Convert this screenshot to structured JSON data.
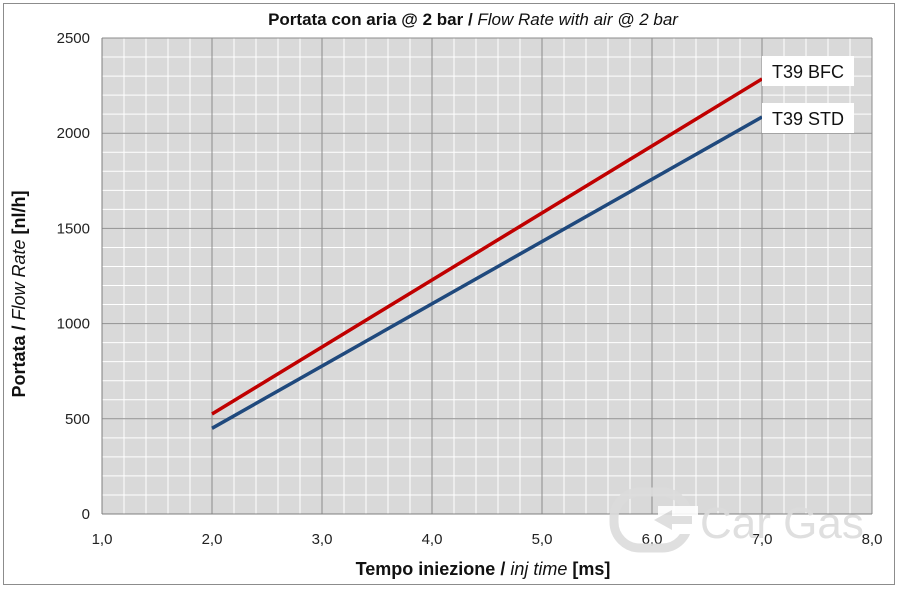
{
  "chart_data": {
    "type": "line",
    "title": "Portata con aria @ 2 bar",
    "title_separator": " / ",
    "title_italic": "Flow Rate with air @ 2 bar",
    "xlabel": "Tempo iniezione",
    "xlabel_separator": " / ",
    "xlabel_italic": "inj time",
    "xlabel_unit": " [ms]",
    "ylabel": "Portata",
    "ylabel_separator": " / ",
    "ylabel_italic": "Flow Rate",
    "ylabel_unit": " [nl/h]",
    "xlim": [
      1.0,
      8.0
    ],
    "ylim": [
      0,
      2500
    ],
    "x_ticks": [
      "1,0",
      "2,0",
      "3,0",
      "4,0",
      "5,0",
      "6,0",
      "7,0",
      "8,0"
    ],
    "y_ticks": [
      "0",
      "500",
      "1000",
      "1500",
      "2000",
      "2500"
    ],
    "grid": true,
    "series": [
      {
        "name": "T39 BFC",
        "color": "#c00000",
        "x": [
          2.0,
          7.0
        ],
        "y": [
          525,
          2285
        ]
      },
      {
        "name": "T39 STD",
        "color": "#1f497d",
        "x": [
          2.0,
          7.0
        ],
        "y": [
          450,
          2085
        ]
      }
    ]
  },
  "watermark": {
    "text": "Car Gas",
    "icon": "cargas-logo-icon"
  }
}
